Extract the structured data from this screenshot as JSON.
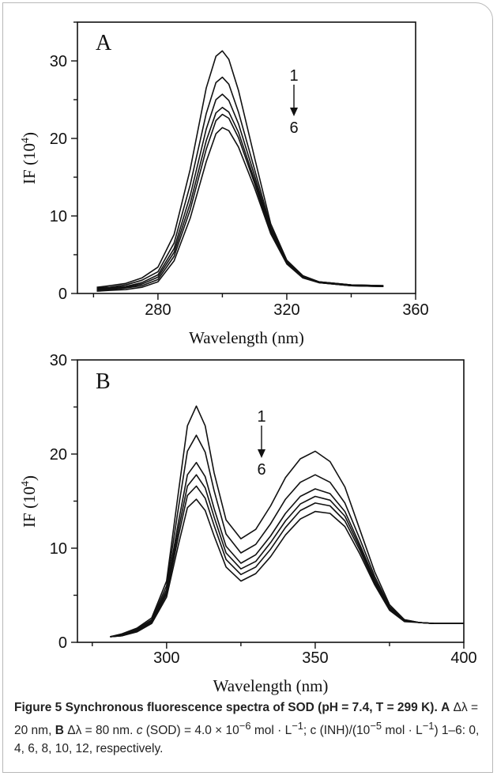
{
  "chart_data": [
    {
      "type": "line",
      "panel_label": "A",
      "xlabel": "Wavelength (nm)",
      "ylabel": "IF (10",
      "ylabel_sup": "4",
      "ylabel_close": ")",
      "xlim": [
        255,
        360
      ],
      "ylim": [
        0,
        35
      ],
      "xticks": [
        280,
        320,
        360
      ],
      "yticks": [
        0,
        10,
        20,
        30
      ],
      "arrow_top": "1",
      "arrow_bottom": "6",
      "series": [
        {
          "x": [
            261,
            265,
            270,
            275,
            280,
            285,
            290,
            295,
            298,
            300,
            302,
            305,
            310,
            315,
            320,
            325,
            330,
            340,
            350
          ],
          "y": [
            0.8,
            1.0,
            1.3,
            2.0,
            3.4,
            7.6,
            16.0,
            26.5,
            30.6,
            31.3,
            30.2,
            26.2,
            17.5,
            9.0,
            4.3,
            2.3,
            1.5,
            1.1,
            1.0
          ]
        },
        {
          "x": [
            261,
            265,
            270,
            275,
            280,
            285,
            290,
            295,
            298,
            300,
            302,
            305,
            310,
            315,
            320,
            325,
            330,
            340,
            350
          ],
          "y": [
            0.7,
            0.8,
            1.1,
            1.7,
            2.8,
            6.5,
            14.0,
            23.2,
            27.2,
            27.9,
            27.0,
            23.4,
            16.0,
            8.6,
            4.2,
            2.2,
            1.5,
            1.1,
            1.0
          ]
        },
        {
          "x": [
            261,
            265,
            270,
            275,
            280,
            285,
            290,
            295,
            298,
            300,
            302,
            305,
            310,
            315,
            320,
            325,
            330,
            340,
            350
          ],
          "y": [
            0.6,
            0.7,
            0.9,
            1.4,
            2.4,
            5.8,
            12.6,
            21.2,
            25.0,
            25.7,
            24.9,
            21.9,
            15.2,
            8.3,
            4.1,
            2.2,
            1.5,
            1.1,
            1.0
          ]
        },
        {
          "x": [
            261,
            265,
            270,
            275,
            280,
            285,
            290,
            295,
            298,
            300,
            302,
            305,
            310,
            315,
            320,
            325,
            330,
            340,
            350
          ],
          "y": [
            0.5,
            0.6,
            0.8,
            1.2,
            2.1,
            5.3,
            11.6,
            19.7,
            23.3,
            24.0,
            23.4,
            20.8,
            14.6,
            8.1,
            4.0,
            2.1,
            1.4,
            1.0,
            0.9
          ]
        },
        {
          "x": [
            261,
            265,
            270,
            275,
            280,
            285,
            290,
            295,
            298,
            300,
            302,
            305,
            310,
            315,
            320,
            325,
            330,
            340,
            350
          ],
          "y": [
            0.4,
            0.5,
            0.7,
            1.0,
            1.8,
            4.8,
            10.8,
            18.6,
            22.3,
            23.1,
            22.6,
            20.1,
            14.2,
            7.9,
            3.9,
            2.1,
            1.4,
            1.0,
            0.9
          ]
        },
        {
          "x": [
            261,
            265,
            270,
            275,
            280,
            285,
            290,
            295,
            298,
            300,
            302,
            305,
            310,
            315,
            320,
            325,
            330,
            340,
            350
          ],
          "y": [
            0.3,
            0.4,
            0.5,
            0.8,
            1.5,
            4.2,
            9.7,
            17.0,
            20.6,
            21.4,
            21.0,
            18.9,
            13.6,
            7.7,
            3.8,
            2.0,
            1.4,
            1.0,
            0.9
          ]
        }
      ]
    },
    {
      "type": "line",
      "panel_label": "B",
      "xlabel": "Wavelength (nm)",
      "ylabel": "IF (10",
      "ylabel_sup": "4",
      "ylabel_close": ")",
      "xlim": [
        270,
        400
      ],
      "ylim": [
        0,
        30
      ],
      "xticks": [
        300,
        350,
        400
      ],
      "yticks": [
        0,
        10,
        20,
        30
      ],
      "arrow_top": "1",
      "arrow_bottom": "6",
      "series": [
        {
          "x": [
            281,
            285,
            290,
            295,
            300,
            304,
            307,
            310,
            313,
            316,
            320,
            325,
            330,
            335,
            340,
            345,
            350,
            355,
            360,
            365,
            370,
            375,
            380,
            385,
            390,
            400
          ],
          "y": [
            0.6,
            0.9,
            1.5,
            2.6,
            6.5,
            16.0,
            23.0,
            25.1,
            23.0,
            18.0,
            13.0,
            11.0,
            12.0,
            14.5,
            17.5,
            19.5,
            20.3,
            19.2,
            16.5,
            12.0,
            7.5,
            4.0,
            2.4,
            2.1,
            2.0,
            2.0
          ]
        },
        {
          "x": [
            281,
            285,
            290,
            295,
            300,
            304,
            307,
            310,
            313,
            316,
            320,
            325,
            330,
            335,
            340,
            345,
            350,
            355,
            360,
            365,
            370,
            375,
            380,
            385,
            390,
            400
          ],
          "y": [
            0.6,
            0.8,
            1.4,
            2.4,
            6.0,
            14.3,
            20.3,
            22.0,
            20.2,
            16.1,
            11.5,
            9.5,
            10.4,
            12.6,
            15.2,
            17.0,
            17.8,
            17.0,
            14.8,
            11.0,
            7.0,
            3.8,
            2.4,
            2.1,
            2.0,
            2.0
          ]
        },
        {
          "x": [
            281,
            285,
            290,
            295,
            300,
            304,
            307,
            310,
            313,
            316,
            320,
            325,
            330,
            335,
            340,
            345,
            350,
            355,
            360,
            365,
            370,
            375,
            380,
            385,
            390,
            400
          ],
          "y": [
            0.6,
            0.8,
            1.3,
            2.3,
            5.6,
            12.8,
            17.8,
            19.1,
            17.6,
            14.2,
            10.2,
            8.4,
            9.3,
            11.3,
            13.7,
            15.5,
            16.3,
            15.8,
            13.9,
            10.4,
            6.7,
            3.7,
            2.3,
            2.1,
            2.0,
            2.0
          ]
        },
        {
          "x": [
            281,
            285,
            290,
            295,
            300,
            304,
            307,
            310,
            313,
            316,
            320,
            325,
            330,
            335,
            340,
            345,
            350,
            355,
            360,
            365,
            370,
            375,
            380,
            385,
            390,
            400
          ],
          "y": [
            0.6,
            0.7,
            1.2,
            2.2,
            5.3,
            12.0,
            16.6,
            17.8,
            16.4,
            13.3,
            9.5,
            7.8,
            8.6,
            10.6,
            12.9,
            14.7,
            15.5,
            15.1,
            13.4,
            10.1,
            6.5,
            3.6,
            2.3,
            2.1,
            2.0,
            2.0
          ]
        },
        {
          "x": [
            281,
            285,
            290,
            295,
            300,
            304,
            307,
            310,
            313,
            316,
            320,
            325,
            330,
            335,
            340,
            345,
            350,
            355,
            360,
            365,
            370,
            375,
            380,
            385,
            390,
            400
          ],
          "y": [
            0.6,
            0.7,
            1.2,
            2.1,
            5.1,
            11.3,
            15.6,
            16.6,
            15.3,
            12.4,
            8.8,
            7.2,
            8.0,
            9.9,
            12.2,
            14.0,
            14.8,
            14.5,
            12.9,
            9.8,
            6.3,
            3.5,
            2.3,
            2.1,
            2.0,
            2.0
          ]
        },
        {
          "x": [
            281,
            285,
            290,
            295,
            300,
            304,
            307,
            310,
            313,
            316,
            320,
            325,
            330,
            335,
            340,
            345,
            350,
            355,
            360,
            365,
            370,
            375,
            380,
            385,
            390,
            400
          ],
          "y": [
            0.6,
            0.7,
            1.1,
            2.0,
            4.8,
            10.4,
            14.3,
            15.2,
            14.0,
            11.3,
            8.0,
            6.5,
            7.3,
            9.1,
            11.4,
            13.1,
            13.9,
            13.7,
            12.3,
            9.4,
            6.1,
            3.4,
            2.2,
            2.1,
            2.0,
            2.0
          ]
        }
      ]
    }
  ],
  "caption": {
    "fig_label": "Figure 5 Synchronous fluorescence spectra of SOD (pH = 7.4, T = 299 K).",
    "a_label": "A",
    "a_text": "Δλ = 20 nm,",
    "b_label": "B",
    "b_text": "Δλ = 80 nm.",
    "c_italic": "c",
    "c_text1": "(SOD) = 4.0 × 10",
    "c_sup1": "−6",
    "c_text2": "mol · L",
    "c_sup2": "−1",
    "c_text3": "; c (INH)/(10",
    "c_sup3": "−5",
    "c_text4": "mol · L",
    "c_sup4": "−1",
    "c_text5": ") 1–6: 0, 4, 6, 8, 10, 12, respectively."
  }
}
